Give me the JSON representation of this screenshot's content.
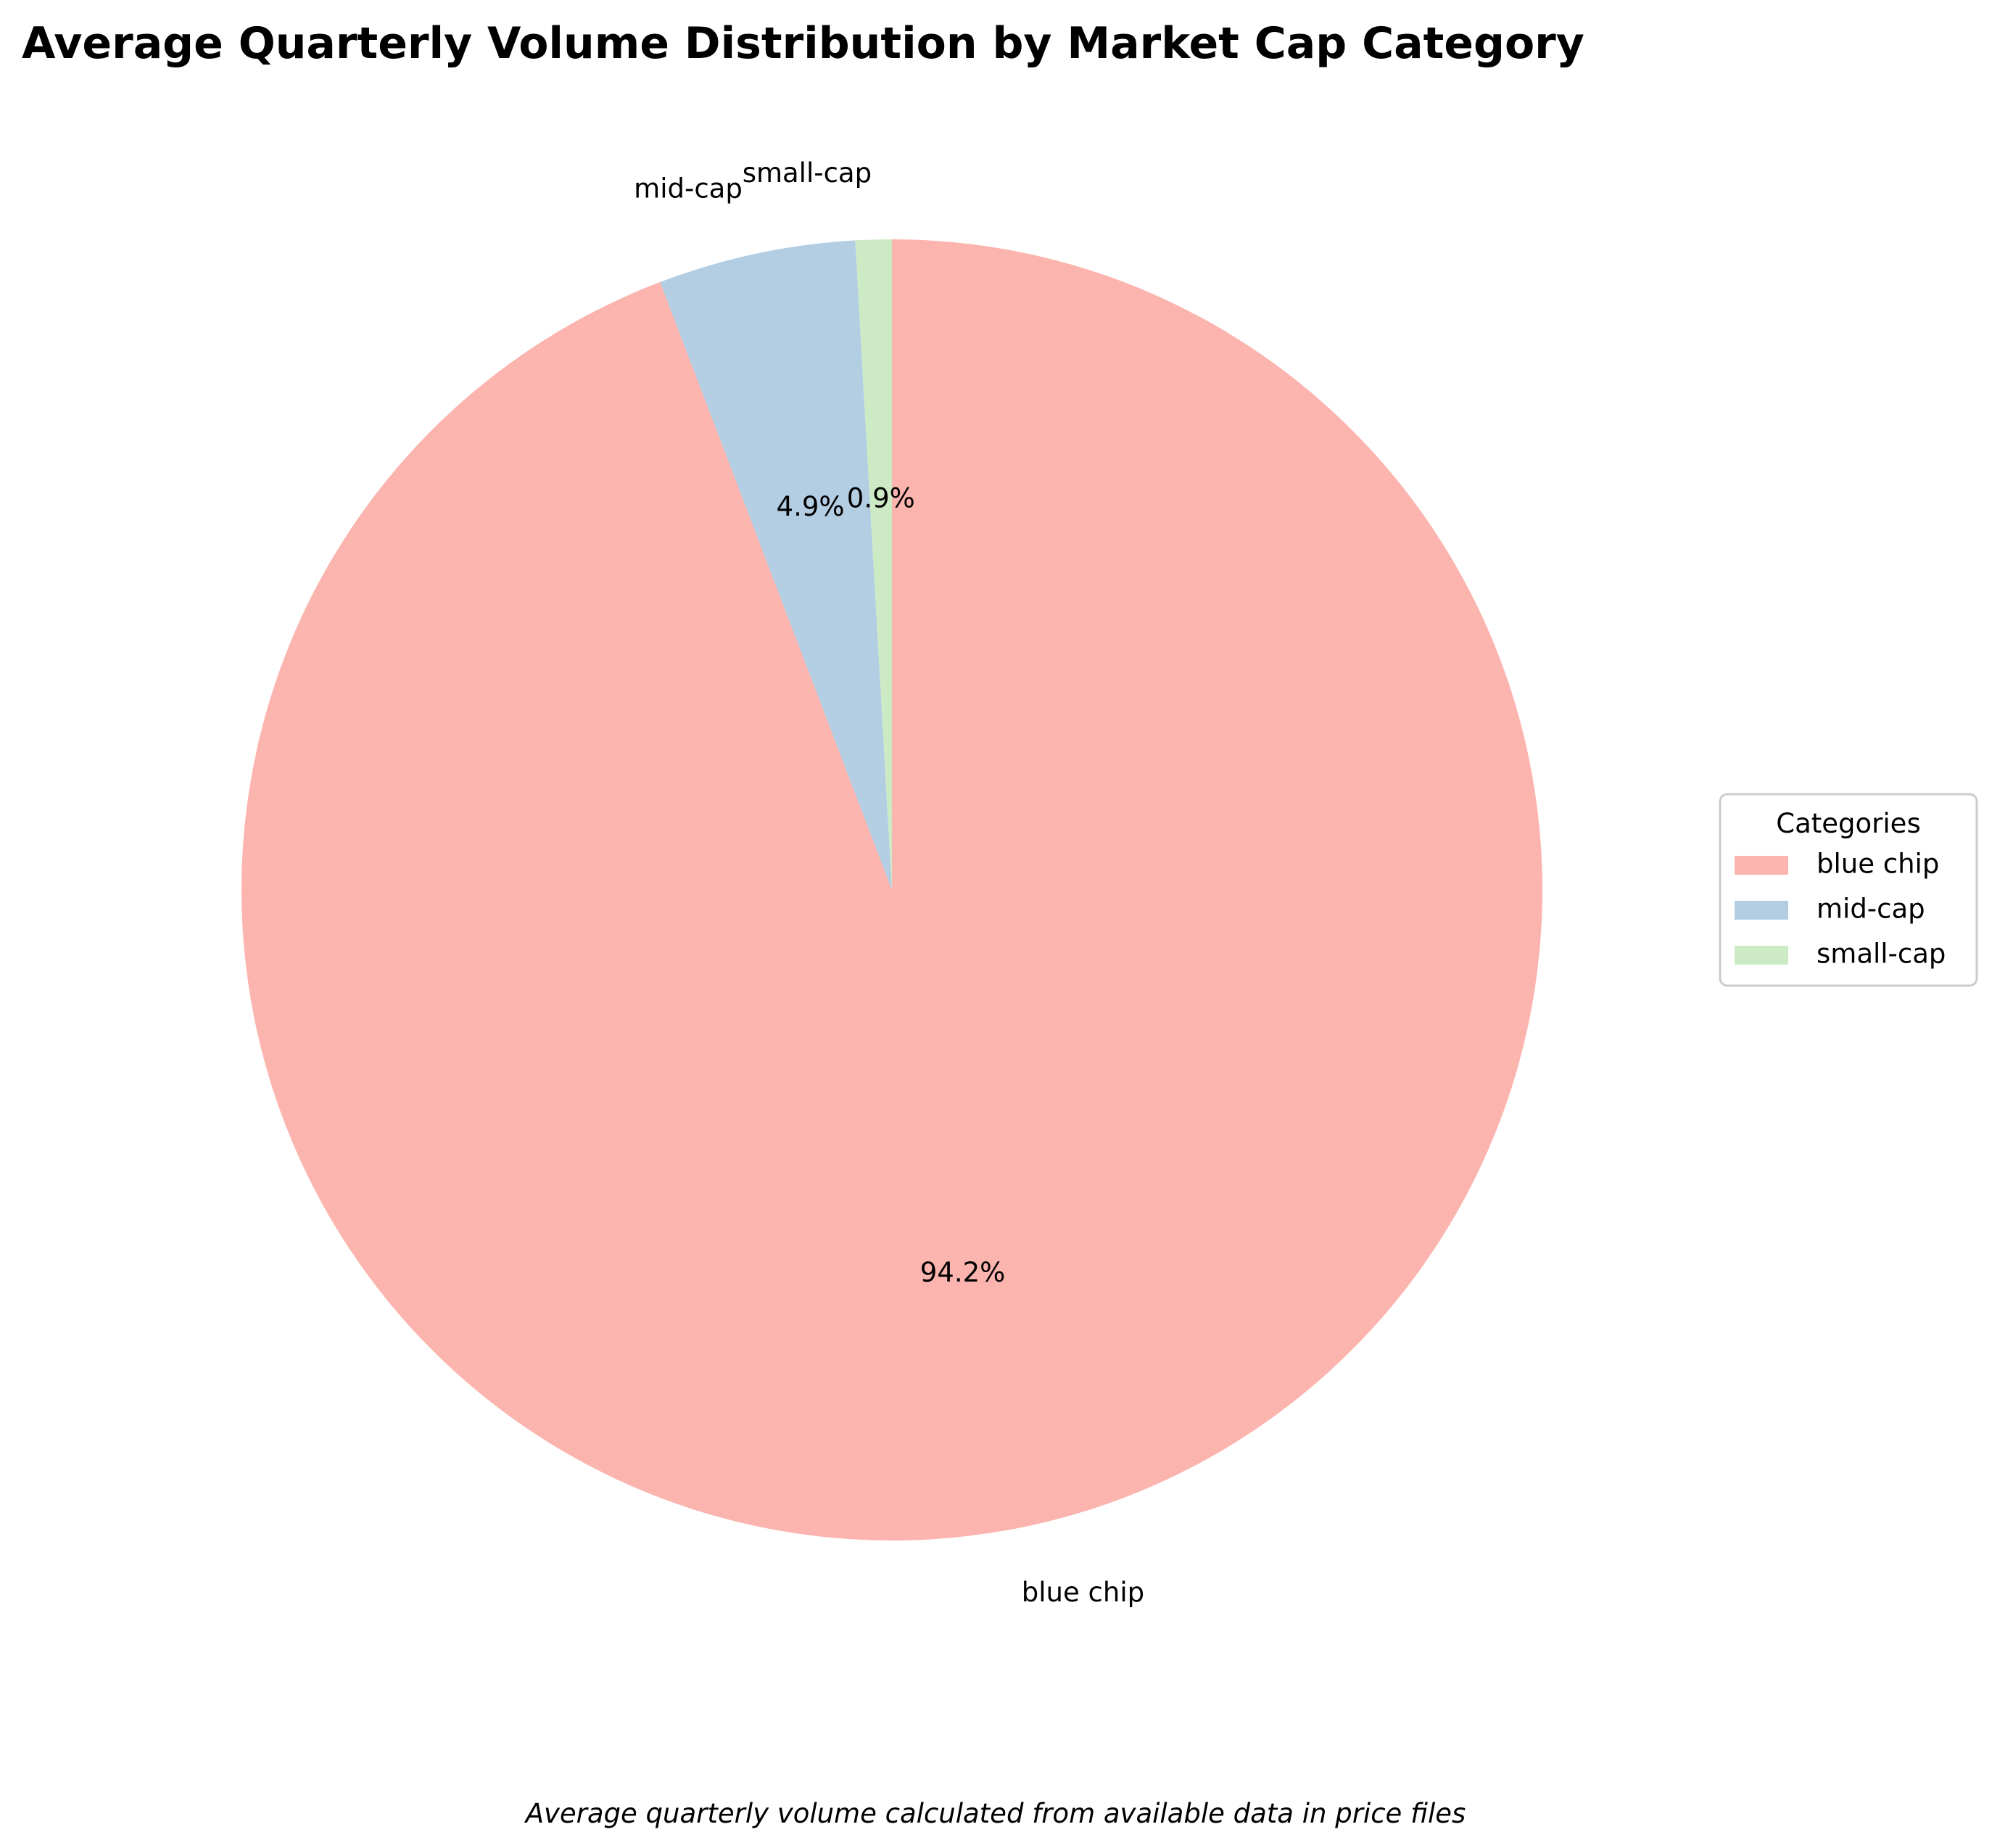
{
  "chart_data": {
    "type": "pie",
    "title": "Average Quarterly Volume Distribution by Market Cap Category",
    "caption": "Average quarterly volume calculated from available data in price files",
    "categories": [
      "blue chip",
      "mid-cap",
      "small-cap"
    ],
    "values": [
      94.2,
      4.9,
      0.9
    ],
    "value_labels": [
      "94.2%",
      "4.9%",
      "0.9%"
    ],
    "colors": [
      "#fbb4ae",
      "#b3cde3",
      "#ccebc5"
    ],
    "start_angle": "top, counter-clockwise",
    "legend": {
      "title": "Categories",
      "placement": "right",
      "entries": [
        "blue chip",
        "mid-cap",
        "small-cap"
      ]
    }
  }
}
